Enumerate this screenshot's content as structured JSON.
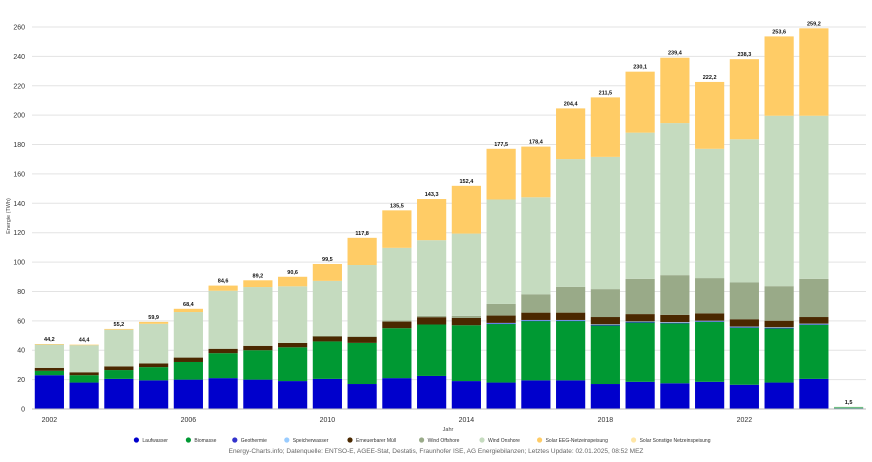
{
  "chart_data": {
    "type": "bar",
    "stacked": true,
    "ylabel": "Energie (TWh)",
    "xlabel": "Jahr",
    "ylim": [
      0,
      260
    ],
    "yticks": [
      0,
      20,
      40,
      60,
      80,
      100,
      120,
      140,
      160,
      180,
      200,
      220,
      240,
      260
    ],
    "categories": [
      2002,
      2003,
      2004,
      2005,
      2006,
      2007,
      2008,
      2009,
      2010,
      2011,
      2012,
      2013,
      2014,
      2015,
      2016,
      2017,
      2018,
      2019,
      2020,
      2021,
      2022,
      2023,
      2024,
      2025
    ],
    "xtick_labels": [
      "2002",
      "2006",
      "2010",
      "2014",
      "2018",
      "2022"
    ],
    "totals": [
      "44,2",
      "44,4",
      "55,2",
      "59,9",
      "68,4",
      "84,6",
      "89,2",
      "90,6",
      "99,5",
      "117,8",
      "135,5",
      "143,3",
      "152,4",
      "177,5",
      "178,4",
      "204,4",
      "211,5",
      "230,1",
      "239,4",
      "222,2",
      "238,3",
      "253,6",
      "259,2",
      "1,5"
    ],
    "series": [
      {
        "name": "Laufwasser",
        "color": "#0000cc",
        "values": [
          23,
          18,
          20.5,
          19.5,
          20,
          21,
          20,
          19,
          20.5,
          17,
          21,
          22.5,
          19,
          18,
          19.5,
          19.5,
          17,
          18.5,
          17.5,
          18.5,
          16.5,
          18,
          20.5,
          0.5
        ]
      },
      {
        "name": "Biomasse",
        "color": "#009933",
        "values": [
          3,
          5,
          6,
          9,
          12,
          17,
          20,
          23,
          25.5,
          28,
          34,
          35,
          38,
          40,
          40.5,
          40.5,
          40,
          40.5,
          41,
          41,
          39,
          37,
          37,
          0.5
        ]
      },
      {
        "name": "Geothermie",
        "color": "#3333cc",
        "values": [
          0,
          0,
          0,
          0,
          0,
          0,
          0,
          0,
          0,
          0,
          0,
          0,
          0,
          0.2,
          0.2,
          0.2,
          0.2,
          0.2,
          0.2,
          0.2,
          0.2,
          0.2,
          0.2,
          0
        ]
      },
      {
        "name": "Speicherwasser",
        "color": "#99ccff",
        "values": [
          0,
          0,
          0,
          0,
          0,
          0,
          0,
          0,
          0,
          0,
          0,
          0,
          0,
          0.4,
          0.4,
          0.4,
          0.4,
          0.4,
          0.4,
          0.4,
          0.4,
          0.4,
          0.4,
          0
        ]
      },
      {
        "name": "Erneuerbarer Müll",
        "color": "#4a2800",
        "values": [
          2,
          2,
          2.5,
          2.5,
          3,
          3,
          3,
          3,
          3.5,
          4,
          4.5,
          5,
          5,
          5,
          5,
          5,
          5,
          5,
          5,
          5,
          5,
          4.5,
          4.5,
          0
        ]
      },
      {
        "name": "Wind Offshore",
        "color": "#99aa88",
        "values": [
          0,
          0,
          0,
          0,
          0,
          0,
          0,
          0,
          0.2,
          0.5,
          0.7,
          0.9,
          1.4,
          8,
          12.5,
          17.5,
          19,
          24,
          27,
          24,
          25,
          23.5,
          26,
          0
        ]
      },
      {
        "name": "Wind Onshore",
        "color": "#c5dbbf",
        "values": [
          16,
          18.5,
          25,
          27,
          31,
          39.5,
          40,
          38.5,
          37.5,
          48.5,
          49.5,
          51.5,
          56,
          71,
          66,
          87,
          90,
          99.5,
          103.5,
          88,
          97.5,
          116,
          111,
          0.5
        ]
      },
      {
        "name": "Solar EEG-Netzeinspeisung",
        "color": "#ffcc66",
        "values": [
          0.2,
          0.3,
          0.5,
          1.3,
          2.2,
          3.5,
          4.6,
          6.5,
          11.5,
          18.5,
          25.5,
          28,
          32.5,
          34.5,
          34.5,
          34.5,
          40.5,
          41.5,
          44.5,
          45.5,
          54.5,
          54,
          59.5,
          0
        ]
      },
      {
        "name": "Solar Sonstige Netzeinspeisung",
        "color": "#ffe6a6",
        "values": [
          0,
          0,
          0,
          0,
          0,
          0,
          0,
          0,
          0,
          0,
          0,
          0,
          0,
          0,
          0,
          0,
          0,
          0,
          0,
          0,
          0,
          0,
          0,
          0
        ]
      }
    ]
  },
  "legend": {
    "items": [
      {
        "label": "Laufwasser",
        "color": "#0000cc"
      },
      {
        "label": "Biomasse",
        "color": "#009933"
      },
      {
        "label": "Geothermie",
        "color": "#3333cc"
      },
      {
        "label": "Speicherwasser",
        "color": "#99ccff"
      },
      {
        "label": "Erneuerbarer Müll",
        "color": "#4a2800"
      },
      {
        "label": "Wind Offshore",
        "color": "#99aa88"
      },
      {
        "label": "Wind Onshore",
        "color": "#c5dbbf"
      },
      {
        "label": "Solar EEG-Netzeinspeisung",
        "color": "#ffcc66"
      },
      {
        "label": "Solar Sonstige Netzeinspeisung",
        "color": "#ffe6a6"
      }
    ]
  },
  "source_text": "Energy-Charts.info; Datenquelle: ENTSO-E, AGEE-Stat, Destatis, Fraunhofer ISE, AG Energiebilanzen; Letztes Update: 02.01.2025, 08:52 MEZ"
}
